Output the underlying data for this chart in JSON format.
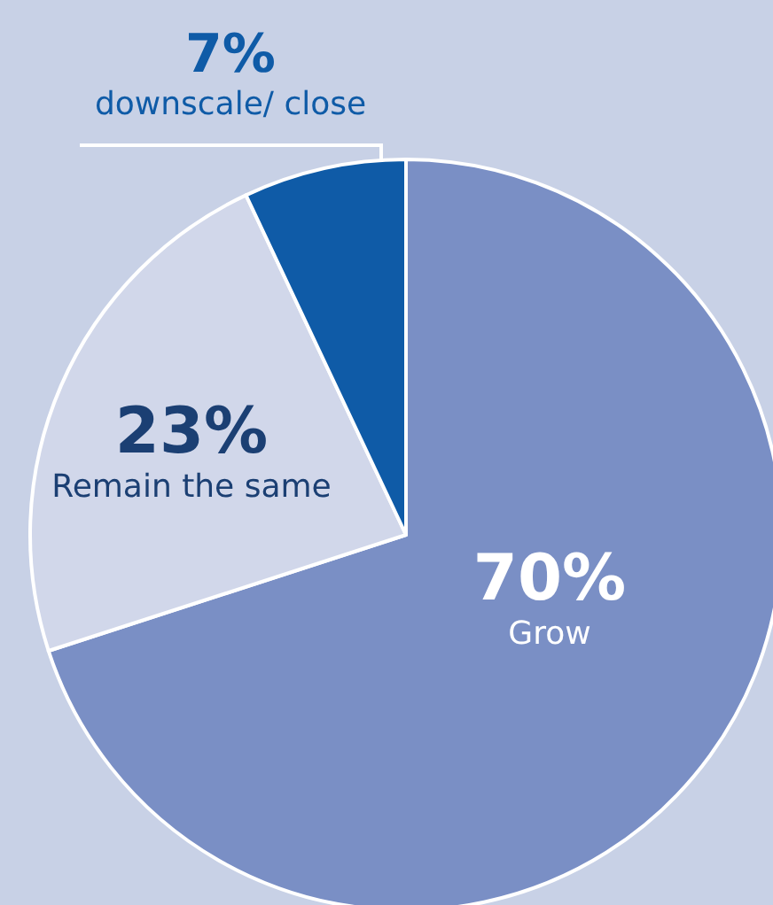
{
  "chart_data": {
    "type": "pie",
    "categories": [
      "Grow",
      "Remain the same",
      "downscale/ close"
    ],
    "values": [
      70,
      23,
      7
    ],
    "colors": [
      "#7a8fc5",
      "#d1d7ea",
      "#0f5ba7"
    ],
    "value_labels": [
      "70%",
      "23%",
      "7%"
    ],
    "legend": false
  }
}
